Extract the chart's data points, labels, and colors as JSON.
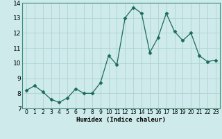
{
  "x": [
    0,
    1,
    2,
    3,
    4,
    5,
    6,
    7,
    8,
    9,
    10,
    11,
    12,
    13,
    14,
    15,
    16,
    17,
    18,
    19,
    20,
    21,
    22,
    23
  ],
  "y": [
    8.2,
    8.5,
    8.1,
    7.6,
    7.4,
    7.7,
    8.3,
    8.0,
    8.0,
    8.7,
    10.5,
    9.9,
    13.0,
    13.7,
    13.3,
    10.7,
    11.7,
    13.3,
    12.1,
    11.5,
    12.0,
    10.5,
    10.1,
    10.2
  ],
  "line_color": "#1a6b5a",
  "marker": "D",
  "marker_size": 2.5,
  "bg_color": "#ceeaea",
  "grid_color": "#aed4d4",
  "xlabel": "Humidex (Indice chaleur)",
  "xlim": [
    -0.5,
    23.5
  ],
  "ylim": [
    7,
    14
  ],
  "yticks": [
    7,
    8,
    9,
    10,
    11,
    12,
    13,
    14
  ],
  "xticks": [
    0,
    1,
    2,
    3,
    4,
    5,
    6,
    7,
    8,
    9,
    10,
    11,
    12,
    13,
    14,
    15,
    16,
    17,
    18,
    19,
    20,
    21,
    22,
    23
  ]
}
